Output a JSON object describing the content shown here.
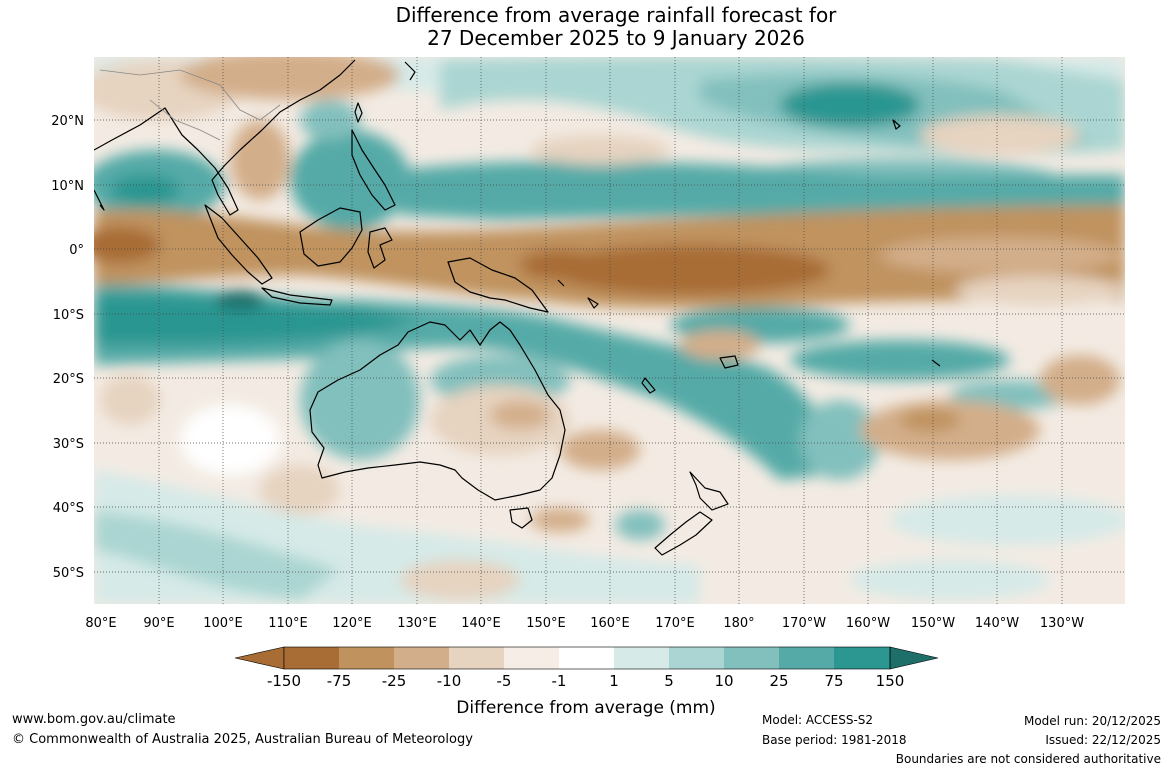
{
  "title": {
    "line1": "Difference from average rainfall forecast for",
    "line2": "27 December 2025 to 9 January 2026"
  },
  "map": {
    "lat_ticks": [
      "20°N",
      "10°N",
      "0°",
      "10°S",
      "20°S",
      "30°S",
      "40°S",
      "50°S"
    ],
    "lon_ticks": [
      "80°E",
      "90°E",
      "100°E",
      "110°E",
      "120°E",
      "130°E",
      "140°E",
      "150°E",
      "160°E",
      "170°E",
      "180°",
      "170°W",
      "160°W",
      "150°W",
      "140°W",
      "130°W"
    ]
  },
  "legend": {
    "title": "Difference from average (mm)",
    "labels": [
      "-150",
      "-75",
      "-25",
      "-10",
      "-5",
      "-1",
      "1",
      "5",
      "10",
      "25",
      "75",
      "150"
    ],
    "colors": [
      "#a86c35",
      "#c0935e",
      "#d3ae8a",
      "#e6d3c0",
      "#f5ede6",
      "#ffffff",
      "#d6eae8",
      "#aad5d2",
      "#82c0bd",
      "#55aaa7",
      "#2c9691",
      "#1e6e6a"
    ]
  },
  "footer": {
    "website": "www.bom.gov.au/climate",
    "copyright": "© Commonwealth of Australia 2025, Australian Bureau of Meteorology",
    "model": "Model: ACCESS-S2",
    "base_period": "Base period: 1981-2018",
    "model_run": "Model run: 20/12/2025",
    "issued": "Issued: 22/12/2025",
    "disclaimer": "Boundaries are not considered authoritative"
  }
}
